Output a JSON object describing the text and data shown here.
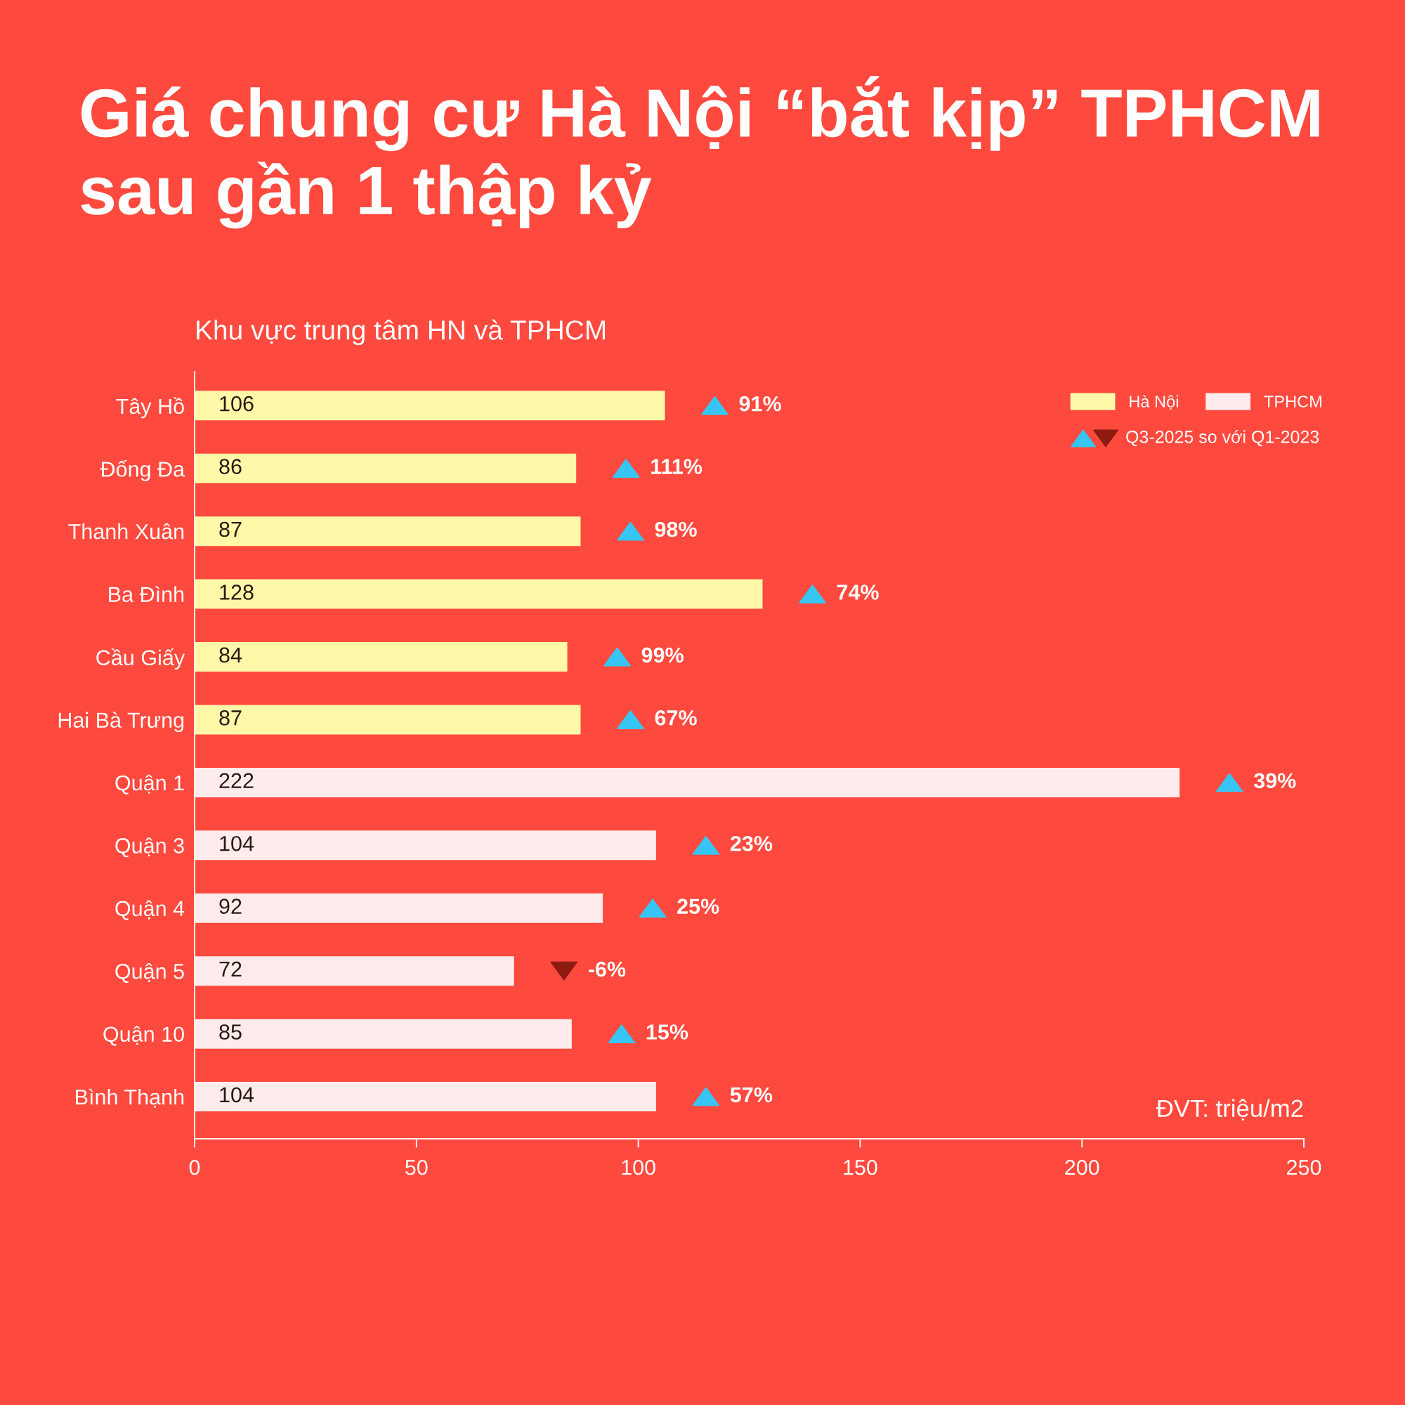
{
  "chart_data": {
    "type": "bar",
    "orientation": "horizontal",
    "title": "Giá chung cư Hà Nội “bắt kịp” TPHCM\nsau gần 1 thập kỷ",
    "subtitle": "Khu vực trung tâm HN và TPHCM",
    "categories": [
      "Tây Hồ",
      "Đống Đa",
      "Thanh Xuân",
      "Ba Đình",
      "Cầu Giấy",
      "Hai Bà Trưng",
      "Quận 1",
      "Quận 3",
      "Quận 4",
      "Quận 5",
      "Quận 10",
      "Bình Thạnh"
    ],
    "series": [
      {
        "name": "Hà Nội",
        "color": "#fff8a8",
        "values": [
          106,
          86,
          87,
          128,
          84,
          87,
          null,
          null,
          null,
          null,
          null,
          null
        ]
      },
      {
        "name": "TPHCM",
        "color": "#fdeceb",
        "values": [
          null,
          null,
          null,
          null,
          null,
          null,
          222,
          104,
          92,
          72,
          85,
          104
        ]
      }
    ],
    "annotations": [
      "91%",
      "111%",
      "98%",
      "74%",
      "99%",
      "67%",
      "39%",
      "23%",
      "25%",
      "-6%",
      "15%",
      "57%",
      "Q3-2025 so với Q1-2023",
      "ĐVT: triệu/m2"
    ],
    "xlim": [
      0,
      250
    ],
    "xticks": [
      0,
      50,
      100,
      150,
      200,
      250
    ],
    "data_labels": true,
    "legend": "top right"
  }
}
